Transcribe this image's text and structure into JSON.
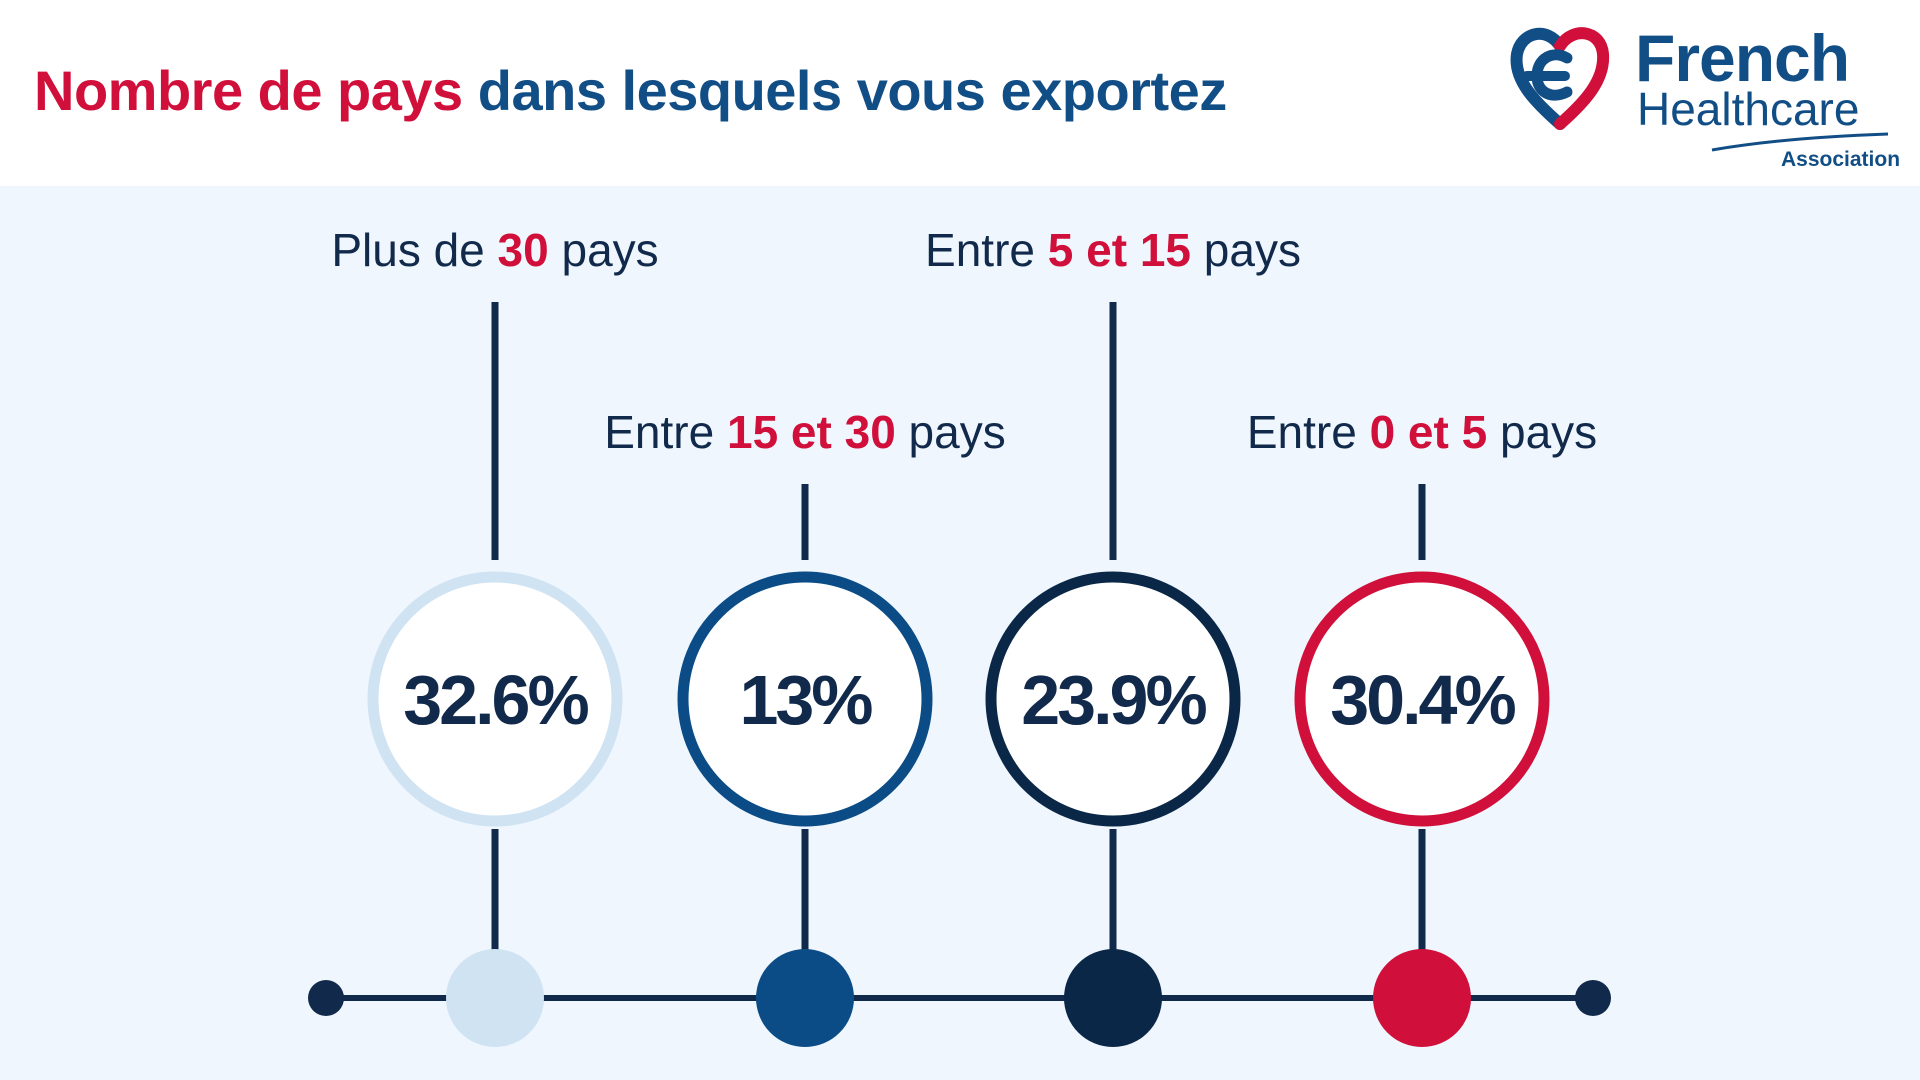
{
  "title": {
    "part1": "Nombre de pays",
    "part2": "dans lesquels vous exportez"
  },
  "logo": {
    "line1": "French",
    "line2": "Healthcare",
    "line3": "Association"
  },
  "colors": {
    "accent_red": "#d0103a",
    "brand_blue": "#124e86",
    "navy": "#11294a",
    "panel_bg": "#eff6fd"
  },
  "chart_data": {
    "type": "timeline-percentages",
    "title": "Nombre de pays dans lesquels vous exportez",
    "unit": "%",
    "categories": [
      {
        "label_parts": [
          {
            "text": "Plus de ",
            "hl": false
          },
          {
            "text": "30",
            "hl": true
          },
          {
            "text": " pays",
            "hl": false
          }
        ],
        "value": 32.6,
        "value_label": "32.6%",
        "color": "#cfe3f3"
      },
      {
        "label_parts": [
          {
            "text": "Entre ",
            "hl": false
          },
          {
            "text": "15 et 30",
            "hl": true
          },
          {
            "text": " pays",
            "hl": false
          }
        ],
        "value": 13,
        "value_label": "13%",
        "color": "#0b4c87"
      },
      {
        "label_parts": [
          {
            "text": "Entre ",
            "hl": false
          },
          {
            "text": "5 et 15",
            "hl": true
          },
          {
            "text": " pays",
            "hl": false
          }
        ],
        "value": 23.9,
        "value_label": "23.9%",
        "color": "#0a2747"
      },
      {
        "label_parts": [
          {
            "text": "Entre ",
            "hl": false
          },
          {
            "text": "0 et 5",
            "hl": true
          },
          {
            "text": " pays",
            "hl": false
          }
        ],
        "value": 30.4,
        "value_label": "30.4%",
        "color": "#d0103a"
      }
    ]
  }
}
